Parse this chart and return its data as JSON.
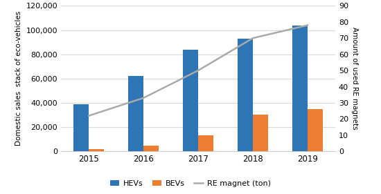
{
  "years": [
    2015,
    2016,
    2017,
    2018,
    2019
  ],
  "hevs": [
    39000,
    62000,
    84000,
    93000,
    104000
  ],
  "bevs": [
    2000,
    4500,
    13000,
    30000,
    35000
  ],
  "re_magnet": [
    22,
    33,
    50,
    70,
    78
  ],
  "hev_color": "#2E75B6",
  "bev_color": "#ED7D31",
  "line_color": "#AAAAAA",
  "ylabel_left": "Domestic sales  stack of eco-vehicles",
  "ylabel_right": "Amount of used RE magnets",
  "ylim_left": [
    0,
    120000
  ],
  "ylim_right": [
    0,
    90
  ],
  "yticks_left": [
    0,
    20000,
    40000,
    60000,
    80000,
    100000,
    120000
  ],
  "yticks_right": [
    0,
    10,
    20,
    30,
    40,
    50,
    60,
    70,
    80,
    90
  ],
  "legend_labels": [
    "HEVs",
    "BEVs",
    "RE magnet (ton)"
  ],
  "bar_width": 0.28,
  "background_color": "#FFFFFF"
}
